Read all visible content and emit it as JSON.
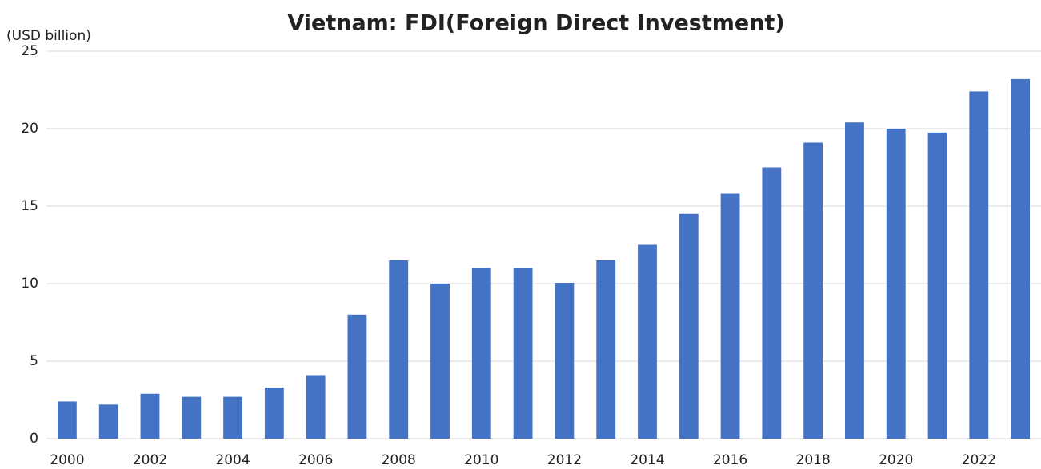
{
  "chart_data": {
    "type": "bar",
    "title": "Vietnam: FDI(Foreign Direct Investment)",
    "y_label": "(USD billion)",
    "categories": [
      "2000",
      null,
      "2002",
      null,
      "2004",
      null,
      "2006",
      null,
      "2008",
      null,
      "2010",
      null,
      "2012",
      null,
      "2014",
      null,
      "2016",
      null,
      "2018",
      null,
      "2020",
      null,
      "2022",
      null
    ],
    "values": [
      2.4,
      2.2,
      2.9,
      2.7,
      2.7,
      3.3,
      4.1,
      8.0,
      11.5,
      10.0,
      11.0,
      11.0,
      10.05,
      11.5,
      12.5,
      14.5,
      15.8,
      17.5,
      19.1,
      20.4,
      20.0,
      19.75,
      22.4,
      23.2
    ],
    "color": "#4472c4",
    "ylim": [
      0,
      25
    ],
    "yticks": [
      0,
      5,
      10,
      15,
      20,
      25
    ],
    "grid": true
  }
}
